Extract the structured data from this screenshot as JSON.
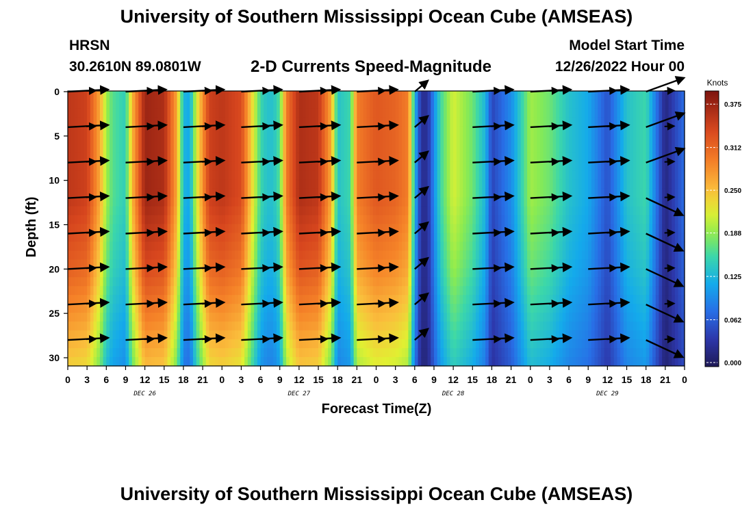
{
  "header": {
    "title": "University of Southern Mississippi Ocean Cube (AMSEAS)",
    "station": "HRSN",
    "coords": "30.2610N  89.0801W",
    "product": "2-D Currents Speed-Magnitude",
    "model_start_label": "Model Start Time",
    "model_start_value": "12/26/2022 Hour 00"
  },
  "footer": {
    "title": "University of Southern Mississippi Ocean Cube (AMSEAS)"
  },
  "chart_data": {
    "type": "heatmap",
    "title": "2-D Currents Speed-Magnitude",
    "xlabel": "Forecast Time(Z)",
    "ylabel": "Depth (ft)",
    "x_ticks": [
      "0",
      "3",
      "6",
      "9",
      "12",
      "15",
      "18",
      "21",
      "0",
      "3",
      "6",
      "9",
      "12",
      "15",
      "18",
      "21",
      "0",
      "3",
      "6",
      "9",
      "12",
      "15",
      "18",
      "21",
      "0",
      "3",
      "6",
      "9",
      "12",
      "15",
      "18",
      "21",
      "0"
    ],
    "x_range_hours": [
      0,
      96
    ],
    "date_labels": [
      {
        "label": "DEC 26",
        "hour": 12
      },
      {
        "label": "DEC 27",
        "hour": 36
      },
      {
        "label": "DEC 28",
        "hour": 60
      },
      {
        "label": "DEC 29",
        "hour": 84
      }
    ],
    "y_ticks": [
      0,
      5,
      10,
      15,
      20,
      25,
      30
    ],
    "ylim": [
      0,
      31
    ],
    "y_inverted": true,
    "colorbar": {
      "unit": "Knots",
      "range": [
        0,
        0.4
      ],
      "ticks": [
        "0.375",
        "0.312",
        "0.250",
        "0.188",
        "0.125",
        "0.062",
        "0.000"
      ],
      "tick_values": [
        0.375,
        0.312,
        0.25,
        0.188,
        0.125,
        0.062,
        0.0
      ]
    },
    "speed_by_hour": [
      [
        0,
        0.36
      ],
      [
        3,
        0.35
      ],
      [
        5,
        0.27
      ],
      [
        6,
        0.2
      ],
      [
        7,
        0.17
      ],
      [
        9,
        0.15
      ],
      [
        10,
        0.26
      ],
      [
        12,
        0.38
      ],
      [
        15,
        0.37
      ],
      [
        17,
        0.27
      ],
      [
        18,
        0.13
      ],
      [
        19,
        0.12
      ],
      [
        20,
        0.22
      ],
      [
        22,
        0.35
      ],
      [
        24,
        0.36
      ],
      [
        27,
        0.34
      ],
      [
        29,
        0.22
      ],
      [
        30,
        0.16
      ],
      [
        31,
        0.14
      ],
      [
        32,
        0.14
      ],
      [
        33,
        0.17
      ],
      [
        34,
        0.3
      ],
      [
        36,
        0.37
      ],
      [
        39,
        0.36
      ],
      [
        41,
        0.27
      ],
      [
        42,
        0.14
      ],
      [
        44,
        0.16
      ],
      [
        45,
        0.3
      ],
      [
        48,
        0.33
      ],
      [
        51,
        0.32
      ],
      [
        53,
        0.3
      ],
      [
        54,
        0.13
      ],
      [
        55,
        0.03
      ],
      [
        56,
        0.03
      ],
      [
        57,
        0.1
      ],
      [
        58,
        0.16
      ],
      [
        60,
        0.22
      ],
      [
        63,
        0.18
      ],
      [
        65,
        0.13
      ],
      [
        66,
        0.05
      ],
      [
        69,
        0.1
      ],
      [
        72,
        0.2
      ],
      [
        75,
        0.18
      ],
      [
        78,
        0.14
      ],
      [
        81,
        0.12
      ],
      [
        84,
        0.06
      ],
      [
        87,
        0.14
      ],
      [
        90,
        0.16
      ],
      [
        93,
        0.02
      ],
      [
        96,
        0.08
      ]
    ],
    "depth_profile": [
      [
        0,
        1.0
      ],
      [
        12,
        1.0
      ],
      [
        20,
        0.9
      ],
      [
        31,
        0.68
      ]
    ],
    "vector_times": [
      0,
      9,
      18,
      27,
      36,
      45,
      54,
      63,
      72,
      81,
      90
    ],
    "vector_depths": [
      0,
      4,
      8,
      12,
      16,
      20,
      24,
      28
    ]
  }
}
